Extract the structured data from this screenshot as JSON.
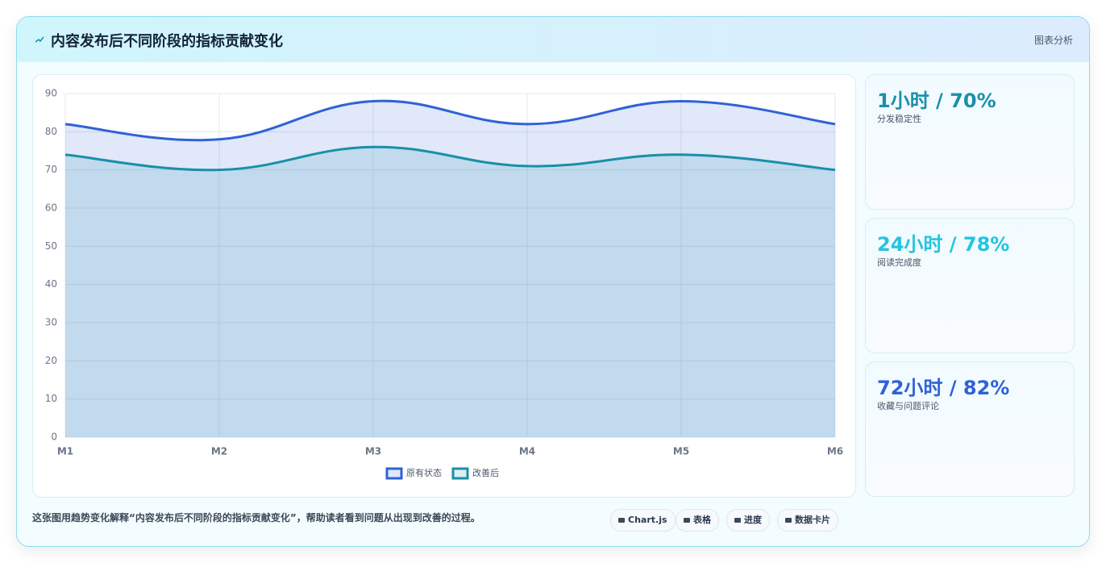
{
  "header": {
    "title": "内容发布后不同阶段的指标贡献变化",
    "action": "图表分析"
  },
  "chart_data": {
    "type": "line",
    "area": true,
    "smooth": true,
    "categories": [
      "M1",
      "M2",
      "M3",
      "M4",
      "M5",
      "M6"
    ],
    "series": [
      {
        "name": "原有状态",
        "color": "#2f62d6",
        "values": [
          82,
          78,
          88,
          82,
          88,
          82
        ]
      },
      {
        "name": "改善后",
        "color": "#1a8fa8",
        "values": [
          74,
          70,
          76,
          71,
          74,
          70
        ]
      }
    ],
    "ylim": [
      0,
      90
    ],
    "yticks": [
      0,
      10,
      20,
      30,
      40,
      50,
      60,
      70,
      80,
      90
    ],
    "grid": true,
    "legend": "bottom"
  },
  "cards": [
    {
      "value": "1小时 / 70%",
      "label": "分发稳定性",
      "color": "#1a8fa8"
    },
    {
      "value": "24小时 / 78%",
      "label": "阅读完成度",
      "color": "#22c5e0"
    },
    {
      "value": "72小时 / 82%",
      "label": "收藏与问题评论",
      "color": "#2f62d6"
    }
  ],
  "footer": {
    "text": "这张图用趋势变化解释“内容发布后不同阶段的指标贡献变化”，帮助读者看到问题从出现到改善的过程。",
    "tags": [
      "Chart.js",
      "表格",
      "进度",
      "数据卡片"
    ]
  }
}
